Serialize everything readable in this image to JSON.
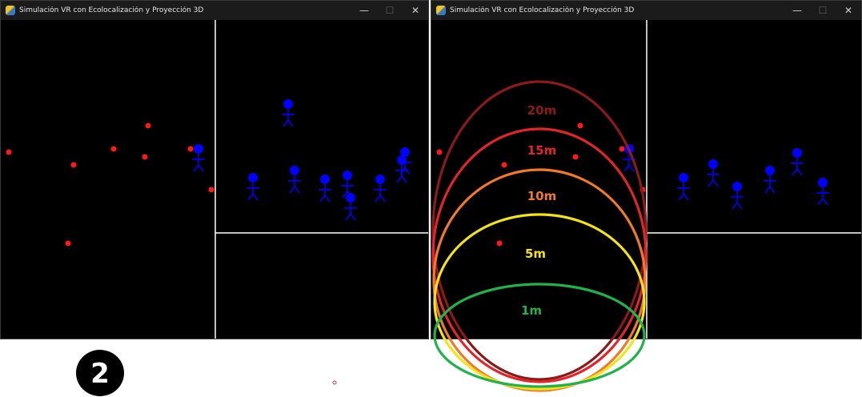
{
  "windows": [
    {
      "title": "Simulación VR con Ecolocalización y Proyección 3D",
      "controls": {
        "minimize": "—",
        "maximize": "☐",
        "close": "✕"
      }
    },
    {
      "title": "Simulación VR con Ecolocalización y Proyección 3D",
      "controls": {
        "minimize": "—",
        "maximize": "☐",
        "close": "✕"
      }
    }
  ],
  "rings": [
    {
      "label": "20m",
      "color": "#8b1a1a"
    },
    {
      "label": "15m",
      "color": "#e0262b"
    },
    {
      "label": "10m",
      "color": "#f07a2a"
    },
    {
      "label": "5m",
      "color": "#f2e31a"
    },
    {
      "label": "1m",
      "color": "#22b24c"
    }
  ],
  "step_badge": "2",
  "colors": {
    "dots": "#ff1a1a",
    "figures": "#0000ff",
    "background": "#000000",
    "divider": "#ffffff"
  }
}
